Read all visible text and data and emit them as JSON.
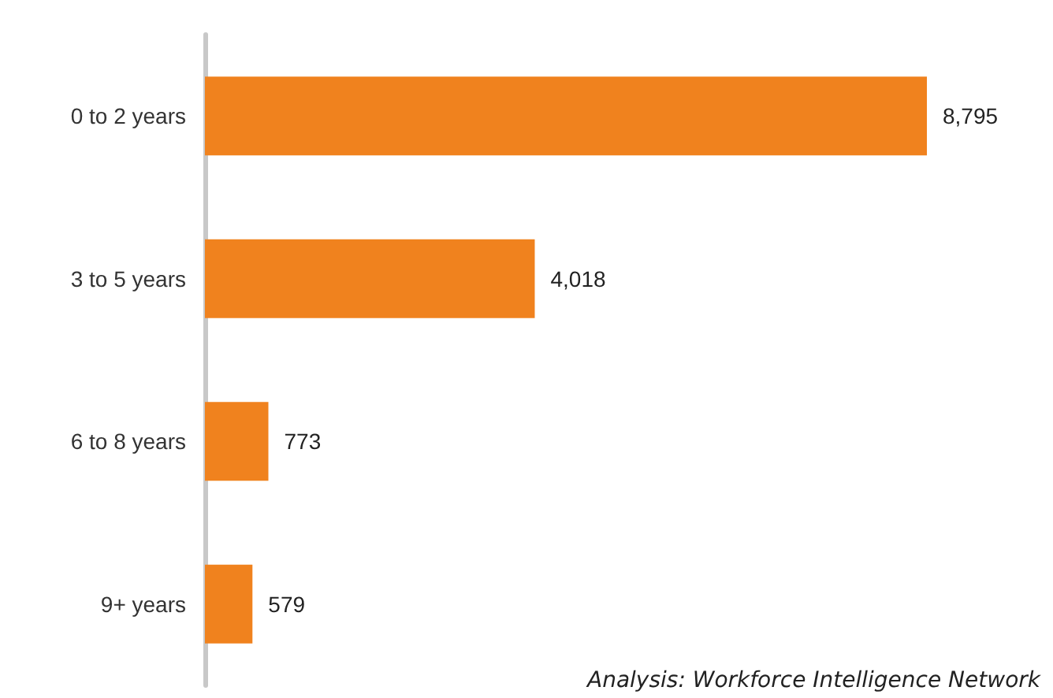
{
  "chart_data": {
    "type": "bar",
    "orientation": "horizontal",
    "categories": [
      "0 to 2 years",
      "3 to 5 years",
      "6 to 8 years",
      "9+ years"
    ],
    "values": [
      8795,
      4018,
      773,
      579
    ],
    "value_labels": [
      "8,795",
      "4,018",
      "773",
      "579"
    ],
    "color": "#f0821e",
    "annotations": [
      "Analysis: Workforce Intelligence Network"
    ]
  }
}
